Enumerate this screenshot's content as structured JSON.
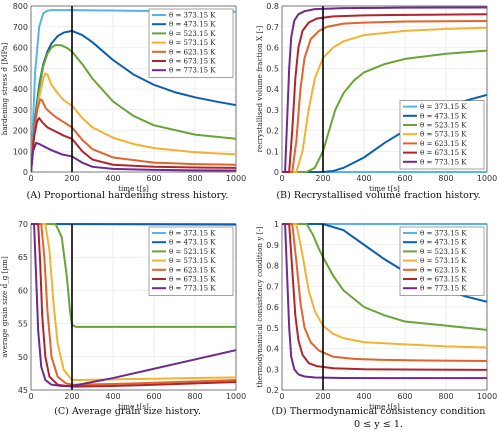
{
  "series_styles": [
    {
      "name": "θ = 373.15 K",
      "color": "#56b4e9"
    },
    {
      "name": "θ = 473.15 K",
      "color": "#0b5fb0"
    },
    {
      "name": "θ = 523.15 K",
      "color": "#6aa436"
    },
    {
      "name": "θ = 573.15 K",
      "color": "#f2b233"
    },
    {
      "name": "θ = 623.15 K",
      "color": "#e0642c"
    },
    {
      "name": "θ = 673.15 K",
      "color": "#b0252c"
    },
    {
      "name": "θ = 773.15 K",
      "color": "#6e2a8c"
    }
  ],
  "chart_data": [
    {
      "type": "line",
      "caption": "(A)  Proportional hardening stress history.",
      "xlabel": "time t[s]",
      "ylabel": "hardening stress σ̂ [MPa]",
      "xlim": [
        0,
        1000
      ],
      "ylim": [
        0,
        800
      ],
      "xticks": [
        0,
        200,
        400,
        600,
        800,
        1000
      ],
      "yticks": [
        0,
        100,
        200,
        300,
        400,
        500,
        600,
        700,
        800
      ],
      "vline": 200,
      "legend": "top-right",
      "series": [
        {
          "name": "θ = 373.15 K",
          "x": [
            0,
            20,
            40,
            60,
            80,
            100,
            150,
            200,
            300,
            400,
            600,
            800,
            1000
          ],
          "y": [
            0,
            480,
            700,
            765,
            778,
            780,
            780,
            780,
            779,
            778,
            776,
            774,
            772
          ]
        },
        {
          "name": "θ = 473.15 K",
          "x": [
            0,
            20,
            40,
            60,
            80,
            100,
            130,
            160,
            200,
            250,
            300,
            400,
            500,
            600,
            700,
            800,
            900,
            1000
          ],
          "y": [
            0,
            260,
            420,
            520,
            580,
            620,
            655,
            672,
            680,
            660,
            625,
            540,
            470,
            420,
            385,
            360,
            340,
            322
          ]
        },
        {
          "name": "θ = 523.15 K",
          "x": [
            0,
            20,
            40,
            60,
            80,
            100,
            120,
            150,
            180,
            200,
            250,
            300,
            400,
            500,
            600,
            800,
            1000
          ],
          "y": [
            0,
            230,
            400,
            510,
            570,
            600,
            612,
            610,
            595,
            580,
            520,
            450,
            340,
            270,
            225,
            180,
            160
          ]
        },
        {
          "name": "θ = 573.15 K",
          "x": [
            0,
            20,
            40,
            60,
            70,
            80,
            100,
            130,
            160,
            200,
            250,
            300,
            400,
            500,
            600,
            800,
            1000
          ],
          "y": [
            0,
            220,
            360,
            450,
            475,
            470,
            420,
            380,
            345,
            320,
            260,
            215,
            165,
            135,
            115,
            95,
            85
          ]
        },
        {
          "name": "θ = 623.15 K",
          "x": [
            0,
            15,
            30,
            45,
            55,
            70,
            90,
            120,
            160,
            200,
            250,
            300,
            400,
            600,
            800,
            1000
          ],
          "y": [
            0,
            200,
            300,
            350,
            345,
            310,
            290,
            265,
            240,
            215,
            155,
            110,
            70,
            45,
            38,
            35
          ]
        },
        {
          "name": "θ = 673.15 K",
          "x": [
            0,
            15,
            30,
            40,
            55,
            80,
            120,
            160,
            200,
            250,
            300,
            400,
            600,
            800,
            1000
          ],
          "y": [
            0,
            170,
            245,
            260,
            240,
            215,
            195,
            175,
            160,
            100,
            60,
            35,
            25,
            22,
            20
          ]
        },
        {
          "name": "θ = 773.15 K",
          "x": [
            0,
            10,
            25,
            40,
            60,
            100,
            150,
            200,
            250,
            300,
            400,
            600,
            800,
            1000
          ],
          "y": [
            0,
            100,
            140,
            135,
            125,
            105,
            85,
            75,
            45,
            25,
            15,
            10,
            8,
            7
          ]
        }
      ]
    },
    {
      "type": "line",
      "caption": "(B)  Recrystallised volume fraction history.",
      "xlabel": "time t[s]",
      "ylabel": "recrystallised volume fraction X [-]",
      "xlim": [
        0,
        1000
      ],
      "ylim": [
        0,
        0.8
      ],
      "xticks": [
        0,
        200,
        400,
        600,
        800,
        1000
      ],
      "yticks": [
        0,
        0.1,
        0.2,
        0.3,
        0.4,
        0.5,
        0.6,
        0.7,
        0.8
      ],
      "vline": 200,
      "legend": "bottom-right",
      "series": [
        {
          "name": "θ = 373.15 K",
          "x": [
            0,
            1000
          ],
          "y": [
            0,
            0
          ]
        },
        {
          "name": "θ = 473.15 K",
          "x": [
            0,
            200,
            250,
            300,
            400,
            500,
            600,
            700,
            800,
            900,
            1000
          ],
          "y": [
            0,
            0,
            0.005,
            0.02,
            0.07,
            0.14,
            0.2,
            0.26,
            0.31,
            0.345,
            0.372
          ]
        },
        {
          "name": "θ = 523.15 K",
          "x": [
            0,
            120,
            160,
            200,
            230,
            260,
            300,
            350,
            400,
            500,
            600,
            800,
            1000
          ],
          "y": [
            0,
            0,
            0.02,
            0.1,
            0.2,
            0.3,
            0.38,
            0.44,
            0.48,
            0.52,
            0.545,
            0.57,
            0.585
          ]
        },
        {
          "name": "θ = 573.15 K",
          "x": [
            0,
            70,
            100,
            130,
            160,
            200,
            250,
            300,
            400,
            600,
            800,
            1000
          ],
          "y": [
            0,
            0,
            0.1,
            0.3,
            0.45,
            0.55,
            0.6,
            0.63,
            0.66,
            0.68,
            0.69,
            0.695
          ]
        },
        {
          "name": "θ = 623.15 K",
          "x": [
            0,
            50,
            70,
            90,
            110,
            140,
            180,
            220,
            300,
            400,
            600,
            1000
          ],
          "y": [
            0,
            0,
            0.15,
            0.4,
            0.55,
            0.64,
            0.68,
            0.7,
            0.715,
            0.72,
            0.725,
            0.728
          ]
        },
        {
          "name": "θ = 673.15 K",
          "x": [
            0,
            35,
            50,
            65,
            80,
            100,
            130,
            170,
            250,
            400,
            700,
            1000
          ],
          "y": [
            0,
            0,
            0.2,
            0.45,
            0.6,
            0.68,
            0.72,
            0.74,
            0.75,
            0.755,
            0.758,
            0.76
          ]
        },
        {
          "name": "θ = 773.15 K",
          "x": [
            0,
            15,
            25,
            35,
            45,
            60,
            80,
            110,
            160,
            300,
            600,
            1000
          ],
          "y": [
            0,
            0,
            0.25,
            0.5,
            0.65,
            0.73,
            0.76,
            0.775,
            0.785,
            0.79,
            0.792,
            0.793
          ]
        }
      ]
    },
    {
      "type": "line",
      "caption": "(C)  Average grain size history.",
      "xlabel": "time t[s]",
      "ylabel": "average grain size d̂_g [μm]",
      "xlim": [
        0,
        1000
      ],
      "ylim": [
        45,
        70
      ],
      "xticks": [
        0,
        200,
        400,
        600,
        800,
        1000
      ],
      "yticks": [
        45,
        50,
        55,
        60,
        65,
        70
      ],
      "vline": 200,
      "legend": "top-right",
      "series": [
        {
          "name": "θ = 373.15 K",
          "x": [
            0,
            1000
          ],
          "y": [
            70,
            70
          ]
        },
        {
          "name": "θ = 473.15 K",
          "x": [
            0,
            1000
          ],
          "y": [
            70,
            69.9
          ]
        },
        {
          "name": "θ = 523.15 K",
          "x": [
            0,
            120,
            150,
            175,
            190,
            200,
            220,
            1000
          ],
          "y": [
            70,
            70,
            68,
            62,
            57,
            54.8,
            54.5,
            54.5
          ]
        },
        {
          "name": "θ = 573.15 K",
          "x": [
            0,
            70,
            90,
            110,
            130,
            160,
            200,
            250,
            400,
            600,
            800,
            1000
          ],
          "y": [
            70,
            70,
            66,
            58,
            52,
            48,
            46.5,
            46.5,
            46.6,
            46.7,
            46.8,
            46.9
          ]
        },
        {
          "name": "θ = 623.15 K",
          "x": [
            0,
            50,
            65,
            80,
            100,
            130,
            170,
            200,
            400,
            600,
            800,
            1000
          ],
          "y": [
            70,
            70,
            65,
            57,
            50,
            47,
            46,
            45.8,
            45.9,
            46.1,
            46.3,
            46.5
          ]
        },
        {
          "name": "θ = 673.15 K",
          "x": [
            0,
            35,
            45,
            55,
            70,
            90,
            130,
            200,
            400,
            600,
            800,
            1000
          ],
          "y": [
            70,
            70,
            64,
            56,
            50,
            47,
            45.8,
            45.5,
            45.6,
            45.8,
            46,
            46.2
          ]
        },
        {
          "name": "θ = 773.15 K",
          "x": [
            0,
            15,
            25,
            35,
            50,
            70,
            100,
            150,
            200,
            300,
            400,
            600,
            800,
            1000
          ],
          "y": [
            70,
            70,
            62,
            54,
            48.5,
            46.5,
            45.8,
            45.6,
            45.6,
            46.2,
            46.8,
            48.2,
            49.6,
            51
          ]
        }
      ]
    },
    {
      "type": "line",
      "caption": "(D)  Thermodynamical consistency condition",
      "caption2": "0 ≤ y ≤ 1.",
      "xlabel": "time t[s]",
      "ylabel": "thermodynamical consistency condition y [-]",
      "xlim": [
        0,
        1000
      ],
      "ylim": [
        0.2,
        1.0
      ],
      "xticks": [
        0,
        200,
        400,
        600,
        800,
        1000
      ],
      "yticks": [
        0.2,
        0.3,
        0.4,
        0.5,
        0.6,
        0.7,
        0.8,
        0.9,
        1.0
      ],
      "vline": 200,
      "legend": "top-right",
      "series": [
        {
          "name": "θ = 373.15 K",
          "x": [
            0,
            1000
          ],
          "y": [
            1,
            1
          ]
        },
        {
          "name": "θ = 473.15 K",
          "x": [
            0,
            200,
            300,
            400,
            500,
            600,
            700,
            800,
            900,
            1000
          ],
          "y": [
            1,
            1,
            0.97,
            0.9,
            0.83,
            0.77,
            0.72,
            0.68,
            0.65,
            0.625
          ]
        },
        {
          "name": "θ = 523.15 K",
          "x": [
            0,
            120,
            150,
            180,
            200,
            250,
            300,
            400,
            500,
            600,
            800,
            1000
          ],
          "y": [
            1,
            1,
            0.95,
            0.88,
            0.84,
            0.75,
            0.68,
            0.6,
            0.56,
            0.53,
            0.51,
            0.49
          ]
        },
        {
          "name": "θ = 573.15 K",
          "x": [
            0,
            70,
            100,
            130,
            160,
            200,
            250,
            300,
            400,
            600,
            800,
            1000
          ],
          "y": [
            1,
            1,
            0.85,
            0.68,
            0.58,
            0.51,
            0.47,
            0.45,
            0.43,
            0.42,
            0.41,
            0.405
          ]
        },
        {
          "name": "θ = 623.15 K",
          "x": [
            0,
            50,
            70,
            90,
            110,
            140,
            180,
            250,
            350,
            500,
            700,
            1000
          ],
          "y": [
            1,
            1,
            0.82,
            0.62,
            0.5,
            0.43,
            0.39,
            0.36,
            0.35,
            0.345,
            0.342,
            0.34
          ]
        },
        {
          "name": "θ = 673.15 K",
          "x": [
            0,
            35,
            50,
            65,
            80,
            100,
            130,
            170,
            250,
            400,
            700,
            1000
          ],
          "y": [
            1,
            1,
            0.78,
            0.56,
            0.44,
            0.37,
            0.33,
            0.315,
            0.305,
            0.3,
            0.298,
            0.297
          ]
        },
        {
          "name": "θ = 773.15 K",
          "x": [
            0,
            15,
            25,
            35,
            45,
            60,
            80,
            110,
            160,
            300,
            600,
            1000
          ],
          "y": [
            1,
            1,
            0.75,
            0.5,
            0.36,
            0.3,
            0.275,
            0.265,
            0.26,
            0.258,
            0.257,
            0.257
          ]
        }
      ]
    }
  ]
}
